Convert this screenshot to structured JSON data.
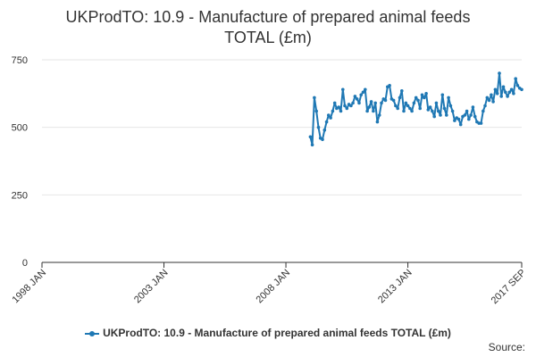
{
  "chart_data": {
    "type": "line",
    "title_line1": "UKProdTO: 10.9 - Manufacture of prepared animal feeds",
    "title_line2": "TOTAL (£m)",
    "xlabel": "",
    "ylabel": "",
    "x_start": "1998-01",
    "x_end": "2017-09",
    "ylim": [
      0,
      750
    ],
    "y_ticks": [
      "0",
      "250",
      "500",
      "750"
    ],
    "x_ticks": [
      "1998 JAN",
      "2003 JAN",
      "2008 JAN",
      "2013 JAN",
      "2017 SEP"
    ],
    "grid": true,
    "legend_position": "bottom",
    "series": [
      {
        "name": "UKProdTO: 10.9 - Manufacture of prepared animal feeds TOTAL (£m)",
        "color": "#1f78b4",
        "x": [
          "2009-01",
          "2009-02",
          "2009-03",
          "2009-04",
          "2009-05",
          "2009-06",
          "2009-07",
          "2009-08",
          "2009-09",
          "2009-10",
          "2009-11",
          "2009-12",
          "2010-01",
          "2010-02",
          "2010-03",
          "2010-04",
          "2010-05",
          "2010-06",
          "2010-07",
          "2010-08",
          "2010-09",
          "2010-10",
          "2010-11",
          "2010-12",
          "2011-01",
          "2011-02",
          "2011-03",
          "2011-04",
          "2011-05",
          "2011-06",
          "2011-07",
          "2011-08",
          "2011-09",
          "2011-10",
          "2011-11",
          "2011-12",
          "2012-01",
          "2012-02",
          "2012-03",
          "2012-04",
          "2012-05",
          "2012-06",
          "2012-07",
          "2012-08",
          "2012-09",
          "2012-10",
          "2012-11",
          "2012-12",
          "2013-01",
          "2013-02",
          "2013-03",
          "2013-04",
          "2013-05",
          "2013-06",
          "2013-07",
          "2013-08",
          "2013-09",
          "2013-10",
          "2013-11",
          "2013-12",
          "2014-01",
          "2014-02",
          "2014-03",
          "2014-04",
          "2014-05",
          "2014-06",
          "2014-07",
          "2014-08",
          "2014-09",
          "2014-10",
          "2014-11",
          "2014-12",
          "2015-01",
          "2015-02",
          "2015-03",
          "2015-04",
          "2015-05",
          "2015-06",
          "2015-07",
          "2015-08",
          "2015-09",
          "2015-10",
          "2015-11",
          "2015-12",
          "2016-01",
          "2016-02",
          "2016-03",
          "2016-04",
          "2016-05",
          "2016-06",
          "2016-07",
          "2016-08",
          "2016-09",
          "2016-10",
          "2016-11",
          "2016-12",
          "2017-01",
          "2017-02",
          "2017-03",
          "2017-04",
          "2017-05",
          "2017-06",
          "2017-07",
          "2017-08",
          "2017-09"
        ],
        "values": [
          465,
          435,
          610,
          560,
          500,
          460,
          455,
          490,
          520,
          545,
          535,
          560,
          590,
          570,
          575,
          560,
          640,
          580,
          570,
          585,
          580,
          590,
          615,
          605,
          590,
          620,
          630,
          640,
          560,
          575,
          595,
          560,
          590,
          520,
          545,
          590,
          605,
          600,
          650,
          655,
          605,
          600,
          580,
          570,
          610,
          635,
          560,
          590,
          580,
          570,
          560,
          590,
          610,
          600,
          570,
          620,
          610,
          625,
          565,
          575,
          560,
          540,
          590,
          560,
          545,
          620,
          570,
          545,
          610,
          580,
          560,
          525,
          535,
          530,
          510,
          540,
          545,
          560,
          530,
          545,
          575,
          540,
          520,
          515,
          515,
          560,
          580,
          610,
          600,
          620,
          595,
          640,
          625,
          700,
          615,
          650,
          630,
          615,
          630,
          640,
          625,
          680,
          655,
          645,
          640
        ]
      }
    ]
  },
  "source_label": "Source:"
}
